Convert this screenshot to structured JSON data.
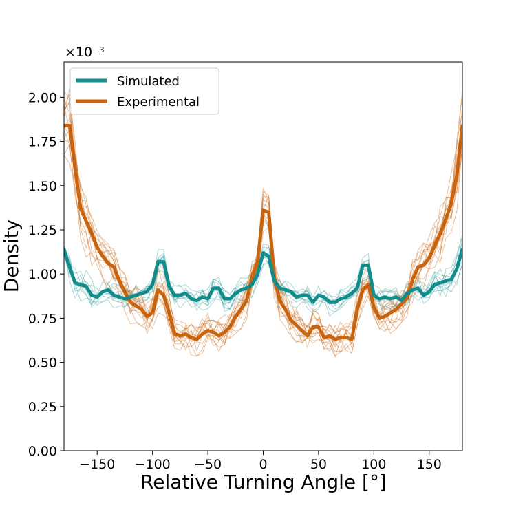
{
  "chart_data": {
    "type": "line",
    "xlabel": "Relative Turning Angle [°]",
    "ylabel": "Density",
    "y_offset_label": "×10⁻³",
    "xlim": [
      -180,
      180
    ],
    "ylim": [
      0,
      2.2
    ],
    "xticks": [
      -150,
      -100,
      -50,
      0,
      50,
      100,
      150
    ],
    "xtick_labels": [
      "−150",
      "−100",
      "−50",
      "0",
      "50",
      "100",
      "150"
    ],
    "yticks": [
      0,
      0.25,
      0.5,
      0.75,
      1.0,
      1.25,
      1.5,
      1.75,
      2.0
    ],
    "ytick_labels": [
      "0.00",
      "0.25",
      "0.50",
      "0.75",
      "1.00",
      "1.25",
      "1.50",
      "1.75",
      "2.00"
    ],
    "grid": false,
    "legend_position": "upper-left",
    "colors": {
      "simulated": "#138c8c",
      "experimental": "#c8640f"
    },
    "x": [
      -180,
      -175,
      -170,
      -165,
      -160,
      -155,
      -150,
      -145,
      -140,
      -135,
      -130,
      -125,
      -120,
      -115,
      -110,
      -105,
      -100,
      -95,
      -90,
      -85,
      -80,
      -75,
      -70,
      -65,
      -60,
      -55,
      -50,
      -45,
      -40,
      -35,
      -30,
      -25,
      -20,
      -15,
      -10,
      -5,
      0,
      5,
      10,
      15,
      20,
      25,
      30,
      35,
      40,
      45,
      50,
      55,
      60,
      65,
      70,
      75,
      80,
      85,
      90,
      95,
      100,
      105,
      110,
      115,
      120,
      125,
      130,
      135,
      140,
      145,
      150,
      155,
      160,
      165,
      170,
      175,
      180
    ],
    "series": [
      {
        "name": "Simulated",
        "values": [
          1.14,
          1.04,
          0.95,
          0.94,
          0.93,
          0.88,
          0.87,
          0.9,
          0.91,
          0.88,
          0.87,
          0.86,
          0.87,
          0.88,
          0.89,
          0.9,
          0.94,
          1.07,
          1.07,
          0.93,
          0.88,
          0.88,
          0.89,
          0.86,
          0.85,
          0.87,
          0.86,
          0.92,
          0.92,
          0.86,
          0.86,
          0.89,
          0.91,
          0.92,
          0.94,
          1.0,
          1.12,
          1.1,
          0.96,
          0.92,
          0.91,
          0.9,
          0.87,
          0.88,
          0.88,
          0.84,
          0.88,
          0.87,
          0.84,
          0.84,
          0.86,
          0.87,
          0.89,
          0.92,
          1.05,
          1.05,
          0.88,
          0.86,
          0.87,
          0.86,
          0.87,
          0.85,
          0.89,
          0.91,
          0.92,
          0.88,
          0.9,
          0.94,
          0.95,
          0.96,
          0.97,
          1.03,
          1.14
        ],
        "bundle_count": 10
      },
      {
        "name": "Experimental",
        "values": [
          1.84,
          1.84,
          1.6,
          1.37,
          1.3,
          1.23,
          1.15,
          1.1,
          1.06,
          1.04,
          0.96,
          0.9,
          0.84,
          0.82,
          0.8,
          0.76,
          0.78,
          0.91,
          0.88,
          0.78,
          0.66,
          0.65,
          0.66,
          0.64,
          0.63,
          0.66,
          0.68,
          0.67,
          0.65,
          0.67,
          0.7,
          0.76,
          0.8,
          0.85,
          0.98,
          1.07,
          1.36,
          1.35,
          0.98,
          0.85,
          0.8,
          0.74,
          0.71,
          0.68,
          0.65,
          0.7,
          0.7,
          0.64,
          0.65,
          0.63,
          0.64,
          0.64,
          0.63,
          0.8,
          0.91,
          0.94,
          0.81,
          0.75,
          0.76,
          0.78,
          0.8,
          0.83,
          0.86,
          0.97,
          1.04,
          1.05,
          1.09,
          1.16,
          1.23,
          1.31,
          1.4,
          1.56,
          1.84
        ],
        "bundle_count": 14
      }
    ]
  }
}
